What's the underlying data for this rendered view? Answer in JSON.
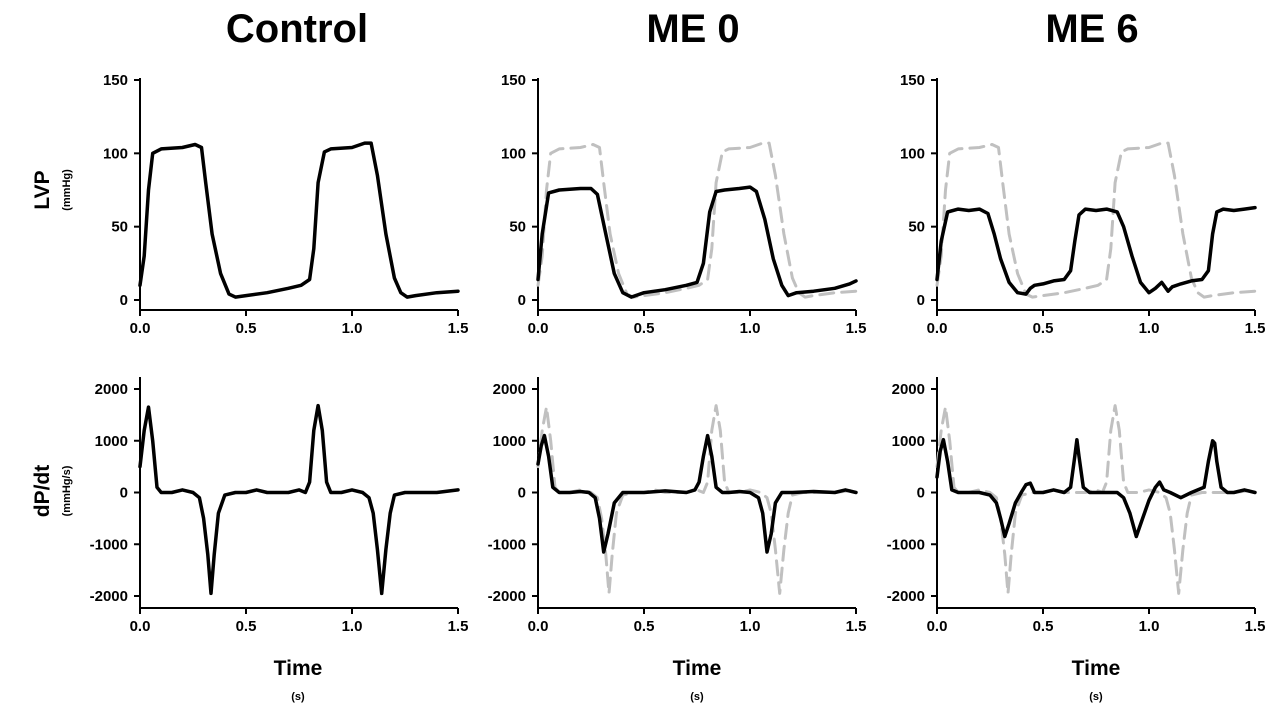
{
  "figure": {
    "columns": [
      "Control",
      "ME 0",
      "ME 6"
    ],
    "row_titles": [
      {
        "label": "LVP",
        "unit": "(mmHg)"
      },
      {
        "label": "dP/dt",
        "unit": "(mmHg/s)"
      }
    ],
    "x_title": {
      "label": "Time",
      "unit": "(s)"
    },
    "colors": {
      "main_trace": "#000000",
      "reference_trace": "#c0c0c0"
    }
  },
  "chart_data": [
    {
      "type": "line",
      "panel": "Control",
      "row": "LVP",
      "ylabel": "LVP",
      "yunit": "(mmHg)",
      "xlabel": "",
      "xlim": [
        0,
        1.5
      ],
      "ylim": [
        -5,
        150
      ],
      "xticks": [
        "0.0",
        "0.5",
        "1.0",
        "1.5"
      ],
      "yticks": [
        "0",
        "50",
        "100",
        "150"
      ],
      "series": [
        {
          "style": "solid",
          "color": "#000000",
          "x": [
            0,
            0.02,
            0.04,
            0.06,
            0.1,
            0.2,
            0.26,
            0.29,
            0.31,
            0.34,
            0.38,
            0.42,
            0.45,
            0.5,
            0.6,
            0.7,
            0.76,
            0.8,
            0.82,
            0.84,
            0.87,
            0.9,
            1.0,
            1.06,
            1.09,
            1.12,
            1.16,
            1.2,
            1.23,
            1.26,
            1.3,
            1.4,
            1.5
          ],
          "y": [
            10,
            30,
            75,
            100,
            103,
            104,
            106,
            104,
            80,
            45,
            18,
            4,
            2,
            3,
            5,
            8,
            10,
            14,
            35,
            80,
            101,
            103,
            104,
            107,
            107,
            85,
            45,
            15,
            5,
            2,
            3,
            5,
            6
          ]
        }
      ]
    },
    {
      "type": "line",
      "panel": "ME 0",
      "row": "LVP",
      "ylabel": "",
      "xlabel": "",
      "xlim": [
        0,
        1.5
      ],
      "ylim": [
        -5,
        150
      ],
      "xticks": [
        "0.0",
        "0.5",
        "1.0",
        "1.5"
      ],
      "yticks": [
        "0",
        "50",
        "100",
        "150"
      ],
      "series": [
        {
          "style": "dashed",
          "color": "#c0c0c0",
          "x": [
            0,
            0.02,
            0.04,
            0.06,
            0.1,
            0.2,
            0.26,
            0.29,
            0.31,
            0.34,
            0.38,
            0.42,
            0.45,
            0.5,
            0.6,
            0.7,
            0.76,
            0.8,
            0.82,
            0.84,
            0.87,
            0.9,
            1.0,
            1.06,
            1.09,
            1.12,
            1.16,
            1.2,
            1.23,
            1.26,
            1.3,
            1.4,
            1.5
          ],
          "y": [
            10,
            30,
            75,
            100,
            103,
            104,
            106,
            104,
            80,
            45,
            18,
            4,
            2,
            3,
            5,
            8,
            10,
            14,
            35,
            80,
            101,
            103,
            104,
            107,
            107,
            85,
            45,
            15,
            5,
            2,
            3,
            5,
            6
          ]
        },
        {
          "style": "solid",
          "color": "#000000",
          "x": [
            0,
            0.02,
            0.05,
            0.1,
            0.2,
            0.25,
            0.28,
            0.32,
            0.36,
            0.4,
            0.44,
            0.5,
            0.6,
            0.7,
            0.75,
            0.78,
            0.81,
            0.84,
            0.88,
            0.95,
            1.0,
            1.03,
            1.07,
            1.11,
            1.15,
            1.18,
            1.22,
            1.3,
            1.4,
            1.47,
            1.5
          ],
          "y": [
            14,
            45,
            73,
            75,
            76,
            76,
            72,
            45,
            18,
            5,
            2,
            5,
            7,
            10,
            12,
            25,
            60,
            74,
            75,
            76,
            77,
            74,
            55,
            28,
            10,
            3,
            5,
            6,
            8,
            11,
            13
          ]
        }
      ]
    },
    {
      "type": "line",
      "panel": "ME 6",
      "row": "LVP",
      "ylabel": "",
      "xlabel": "",
      "xlim": [
        0,
        1.5
      ],
      "ylim": [
        -5,
        150
      ],
      "xticks": [
        "0.0",
        "0.5",
        "1.0",
        "1.5"
      ],
      "yticks": [
        "0",
        "50",
        "100",
        "150"
      ],
      "series": [
        {
          "style": "dashed",
          "color": "#c0c0c0",
          "x": [
            0,
            0.02,
            0.04,
            0.06,
            0.1,
            0.2,
            0.26,
            0.29,
            0.31,
            0.34,
            0.38,
            0.42,
            0.45,
            0.5,
            0.6,
            0.7,
            0.76,
            0.8,
            0.82,
            0.84,
            0.87,
            0.9,
            1.0,
            1.06,
            1.09,
            1.12,
            1.16,
            1.2,
            1.23,
            1.26,
            1.3,
            1.4,
            1.5
          ],
          "y": [
            10,
            30,
            75,
            100,
            103,
            104,
            106,
            104,
            80,
            45,
            18,
            4,
            2,
            3,
            5,
            8,
            10,
            14,
            35,
            80,
            101,
            103,
            104,
            107,
            107,
            85,
            45,
            15,
            5,
            2,
            3,
            5,
            6
          ]
        },
        {
          "style": "solid",
          "color": "#000000",
          "x": [
            0,
            0.02,
            0.05,
            0.1,
            0.15,
            0.2,
            0.24,
            0.27,
            0.3,
            0.34,
            0.38,
            0.42,
            0.44,
            0.46,
            0.5,
            0.55,
            0.6,
            0.63,
            0.65,
            0.67,
            0.7,
            0.75,
            0.8,
            0.85,
            0.88,
            0.92,
            0.96,
            1.0,
            1.03,
            1.06,
            1.09,
            1.11,
            1.15,
            1.2,
            1.25,
            1.28,
            1.3,
            1.32,
            1.35,
            1.4,
            1.45,
            1.5
          ],
          "y": [
            14,
            40,
            60,
            62,
            61,
            62,
            59,
            45,
            28,
            12,
            5,
            4,
            8,
            10,
            11,
            13,
            14,
            20,
            40,
            58,
            62,
            61,
            62,
            60,
            50,
            30,
            12,
            5,
            8,
            12,
            6,
            9,
            11,
            13,
            14,
            20,
            45,
            60,
            62,
            61,
            62,
            63
          ]
        }
      ]
    },
    {
      "type": "line",
      "panel": "Control",
      "row": "dP/dt",
      "ylabel": "dP/dt",
      "yunit": "(mmHg/s)",
      "xlabel": "Time",
      "xunit": "(s)",
      "xlim": [
        0,
        1.5
      ],
      "ylim": [
        -2100,
        2200
      ],
      "xticks": [
        "0.0",
        "0.5",
        "1.0",
        "1.5"
      ],
      "yticks": [
        "-2000",
        "-1000",
        "0",
        "1000",
        "2000"
      ],
      "series": [
        {
          "style": "solid",
          "color": "#000000",
          "x": [
            0,
            0.02,
            0.04,
            0.06,
            0.08,
            0.1,
            0.15,
            0.2,
            0.25,
            0.28,
            0.3,
            0.32,
            0.335,
            0.35,
            0.37,
            0.4,
            0.45,
            0.5,
            0.55,
            0.6,
            0.7,
            0.75,
            0.78,
            0.8,
            0.82,
            0.84,
            0.86,
            0.88,
            0.9,
            0.95,
            1.0,
            1.05,
            1.08,
            1.1,
            1.12,
            1.14,
            1.16,
            1.18,
            1.2,
            1.25,
            1.3,
            1.4,
            1.5
          ],
          "y": [
            500,
            1200,
            1650,
            1000,
            100,
            0,
            0,
            50,
            0,
            -100,
            -500,
            -1200,
            -1950,
            -1200,
            -400,
            -50,
            0,
            0,
            50,
            0,
            0,
            50,
            0,
            200,
            1200,
            1680,
            1200,
            200,
            0,
            0,
            50,
            0,
            -100,
            -400,
            -1100,
            -1950,
            -1100,
            -400,
            -50,
            0,
            0,
            0,
            50
          ]
        }
      ]
    },
    {
      "type": "line",
      "panel": "ME 0",
      "row": "dP/dt",
      "ylabel": "",
      "xlabel": "Time",
      "xunit": "(s)",
      "xlim": [
        0,
        1.5
      ],
      "ylim": [
        -2100,
        2200
      ],
      "xticks": [
        "0.0",
        "0.5",
        "1.0",
        "1.5"
      ],
      "yticks": [
        "-2000",
        "-1000",
        "0",
        "1000",
        "2000"
      ],
      "series": [
        {
          "style": "dashed",
          "color": "#c0c0c0",
          "x": [
            0,
            0.02,
            0.04,
            0.06,
            0.08,
            0.1,
            0.15,
            0.2,
            0.25,
            0.28,
            0.3,
            0.32,
            0.335,
            0.35,
            0.37,
            0.4,
            0.45,
            0.5,
            0.55,
            0.6,
            0.7,
            0.75,
            0.78,
            0.8,
            0.82,
            0.84,
            0.86,
            0.88,
            0.9,
            0.95,
            1.0,
            1.05,
            1.08,
            1.1,
            1.12,
            1.14,
            1.16,
            1.18,
            1.2,
            1.25,
            1.3,
            1.4,
            1.5
          ],
          "y": [
            500,
            1200,
            1650,
            1000,
            100,
            0,
            0,
            50,
            0,
            -100,
            -500,
            -1200,
            -1950,
            -1200,
            -400,
            -50,
            0,
            0,
            50,
            0,
            0,
            50,
            0,
            200,
            1200,
            1680,
            1200,
            200,
            0,
            0,
            50,
            0,
            -100,
            -400,
            -1100,
            -1950,
            -1100,
            -400,
            -50,
            0,
            0,
            0,
            50
          ]
        },
        {
          "style": "solid",
          "color": "#000000",
          "x": [
            0,
            0.015,
            0.03,
            0.05,
            0.07,
            0.1,
            0.15,
            0.2,
            0.24,
            0.27,
            0.29,
            0.31,
            0.33,
            0.36,
            0.4,
            0.5,
            0.6,
            0.7,
            0.74,
            0.76,
            0.78,
            0.8,
            0.82,
            0.84,
            0.87,
            0.9,
            0.95,
            1.0,
            1.04,
            1.06,
            1.08,
            1.1,
            1.12,
            1.15,
            1.2,
            1.3,
            1.4,
            1.45,
            1.5
          ],
          "y": [
            550,
            900,
            1100,
            700,
            100,
            0,
            0,
            20,
            0,
            -100,
            -500,
            -1150,
            -800,
            -200,
            0,
            0,
            30,
            0,
            50,
            200,
            700,
            1100,
            700,
            100,
            0,
            0,
            20,
            0,
            -100,
            -400,
            -1150,
            -800,
            -200,
            0,
            0,
            20,
            0,
            50,
            0
          ]
        }
      ]
    },
    {
      "type": "line",
      "panel": "ME 6",
      "row": "dP/dt",
      "ylabel": "",
      "xlabel": "Time",
      "xunit": "(s)",
      "xlim": [
        0,
        1.5
      ],
      "ylim": [
        -2100,
        2200
      ],
      "xticks": [
        "0.0",
        "0.5",
        "1.0",
        "1.5"
      ],
      "yticks": [
        "-2000",
        "-1000",
        "0",
        "1000",
        "2000"
      ],
      "series": [
        {
          "style": "dashed",
          "color": "#c0c0c0",
          "x": [
            0,
            0.02,
            0.04,
            0.06,
            0.08,
            0.1,
            0.15,
            0.2,
            0.25,
            0.28,
            0.3,
            0.32,
            0.335,
            0.35,
            0.37,
            0.4,
            0.45,
            0.5,
            0.55,
            0.6,
            0.7,
            0.75,
            0.78,
            0.8,
            0.82,
            0.84,
            0.86,
            0.88,
            0.9,
            0.95,
            1.0,
            1.05,
            1.08,
            1.1,
            1.12,
            1.14,
            1.16,
            1.18,
            1.2,
            1.25,
            1.3,
            1.4,
            1.5
          ],
          "y": [
            500,
            1200,
            1650,
            1000,
            100,
            0,
            0,
            50,
            0,
            -100,
            -500,
            -1200,
            -1950,
            -1200,
            -400,
            -50,
            0,
            0,
            50,
            0,
            0,
            50,
            0,
            200,
            1200,
            1680,
            1200,
            200,
            0,
            0,
            50,
            0,
            -100,
            -400,
            -1100,
            -1950,
            -1100,
            -400,
            -50,
            0,
            0,
            0,
            50
          ]
        },
        {
          "style": "solid",
          "color": "#000000",
          "x": [
            0,
            0.015,
            0.03,
            0.05,
            0.07,
            0.1,
            0.15,
            0.2,
            0.25,
            0.28,
            0.3,
            0.32,
            0.34,
            0.37,
            0.4,
            0.42,
            0.44,
            0.46,
            0.5,
            0.55,
            0.6,
            0.63,
            0.65,
            0.66,
            0.67,
            0.69,
            0.72,
            0.8,
            0.85,
            0.88,
            0.91,
            0.94,
            0.97,
            1.0,
            1.03,
            1.05,
            1.07,
            1.1,
            1.15,
            1.2,
            1.26,
            1.28,
            1.3,
            1.31,
            1.32,
            1.34,
            1.37,
            1.4,
            1.45,
            1.5
          ],
          "y": [
            300,
            800,
            1020,
            600,
            50,
            0,
            0,
            0,
            -50,
            -200,
            -500,
            -850,
            -600,
            -200,
            20,
            150,
            180,
            0,
            0,
            50,
            0,
            100,
            700,
            1020,
            700,
            100,
            0,
            0,
            0,
            -100,
            -400,
            -850,
            -500,
            -150,
            100,
            200,
            50,
            0,
            -100,
            0,
            100,
            600,
            1000,
            950,
            600,
            100,
            0,
            0,
            50,
            0
          ]
        }
      ]
    }
  ]
}
